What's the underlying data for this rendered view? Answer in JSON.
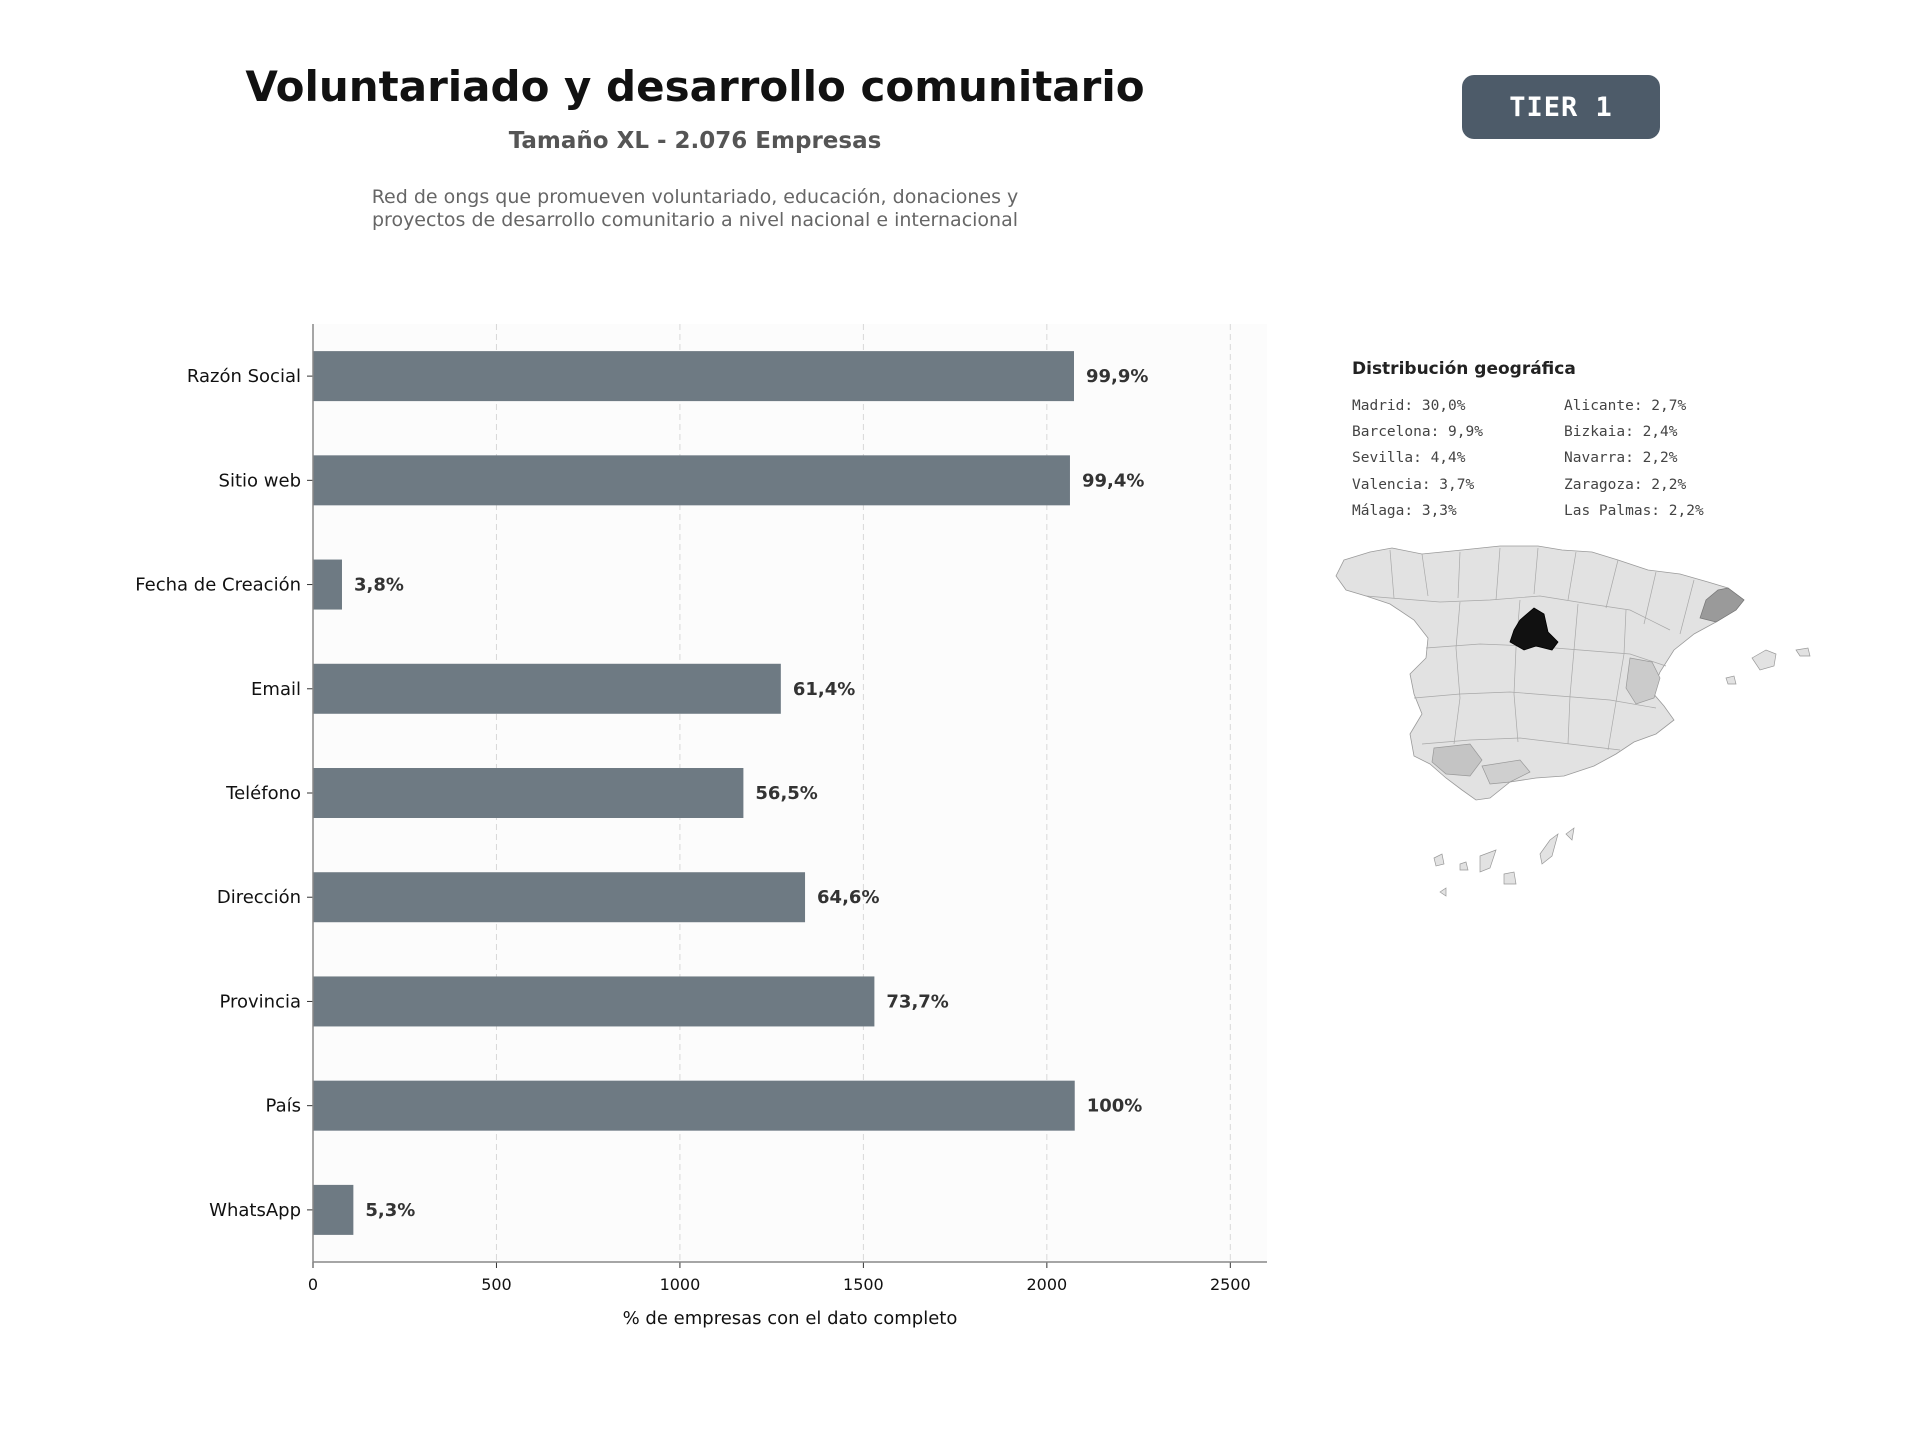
{
  "header": {
    "title": "Voluntariado y desarrollo comunitario",
    "subtitle": "Tamaño XL - 2.076 Empresas",
    "description_line1": "Red de ongs que promueven voluntariado, educación, donaciones y",
    "description_line2": "proyectos de desarrollo comunitario a nivel nacional e internacional",
    "badge": "TIER 1"
  },
  "chart_data": {
    "type": "bar",
    "orientation": "horizontal",
    "categories": [
      "Razón Social",
      "Sitio web",
      "Fecha de Creación",
      "Email",
      "Teléfono",
      "Dirección",
      "Provincia",
      "País",
      "WhatsApp"
    ],
    "values": [
      2074,
      2063,
      79,
      1275,
      1173,
      1341,
      1530,
      2076,
      110
    ],
    "value_labels": [
      "99,9%",
      "99,4%",
      "3,8%",
      "61,4%",
      "56,5%",
      "64,6%",
      "73,7%",
      "100%",
      "5,3%"
    ],
    "xlabel": "% de empresas con el dato completo",
    "ylabel": "",
    "xlim": [
      0,
      2600
    ],
    "xticks": [
      0,
      500,
      1000,
      1500,
      2000,
      2500
    ],
    "grid": "x-dashed",
    "bar_color": "#6e7a83"
  },
  "geo": {
    "title": "Distribución geográfica",
    "col1": [
      "Madrid: 30,0%",
      "Barcelona: 9,9%",
      "Sevilla: 4,4%",
      "Valencia: 3,7%",
      "Málaga: 3,3%"
    ],
    "col2": [
      "Alicante: 2,7%",
      "Bizkaia: 2,4%",
      "Navarra: 2,2%",
      "Zaragoza: 2,2%",
      "Las Palmas: 2,2%"
    ],
    "map": {
      "base_color": "#e2e2e2",
      "highlights": [
        {
          "region": "Madrid",
          "color": "#111111"
        },
        {
          "region": "Barcelona",
          "color": "#9a9a9a"
        },
        {
          "region": "Sevilla",
          "color": "#c4c4c4"
        },
        {
          "region": "Valencia",
          "color": "#cbcbcb"
        },
        {
          "region": "Málaga",
          "color": "#cfcfcf"
        }
      ]
    }
  }
}
